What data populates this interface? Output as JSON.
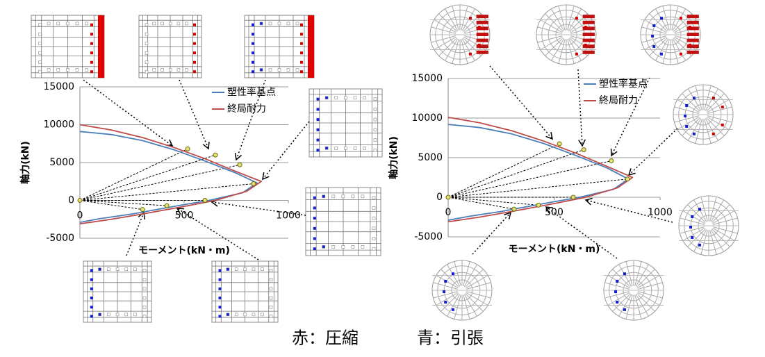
{
  "chart_data": [
    {
      "type": "line",
      "xlabel": "モーメント(kN・m)",
      "ylabel": "軸力(kN)",
      "xlim": [
        0,
        1000
      ],
      "ylim": [
        -5000,
        15000
      ],
      "xticks": [
        0,
        500,
        1000
      ],
      "yticks": [
        -5000,
        0,
        5000,
        10000,
        15000
      ],
      "grid": true,
      "legend": "upper right",
      "series": [
        {
          "name": "塑性率基点",
          "color": "#4a7ebb",
          "x": [
            0,
            150,
            300,
            450,
            600,
            750,
            850,
            780,
            620,
            450,
            250,
            100,
            0
          ],
          "values": [
            9100,
            8700,
            7900,
            6700,
            5200,
            3600,
            2300,
            1000,
            0,
            -800,
            -1800,
            -2400,
            -2900
          ]
        },
        {
          "name": "終局耐力",
          "color": "#be4b48",
          "x": [
            0,
            150,
            300,
            450,
            600,
            750,
            870,
            800,
            650,
            500,
            300,
            150,
            0
          ],
          "values": [
            10000,
            9300,
            8300,
            7000,
            5500,
            3800,
            2500,
            1200,
            0,
            -800,
            -1800,
            -2500,
            -3100
          ]
        }
      ],
      "markers": {
        "color": "#e8e070",
        "x": [
          0,
          517,
          650,
          767,
          833,
          600,
          417,
          300
        ],
        "y": [
          0,
          6800,
          6000,
          4700,
          2200,
          0,
          -700,
          -1200
        ]
      }
    },
    {
      "type": "line",
      "xlabel": "モーメント(kN・m)",
      "ylabel": "軸力(kN)",
      "xlim": [
        0,
        1000
      ],
      "ylim": [
        -5000,
        15000
      ],
      "xticks": [
        0,
        500,
        1000
      ],
      "yticks": [
        -5000,
        0,
        5000,
        10000,
        15000
      ],
      "grid": true,
      "legend": "upper right",
      "series": [
        {
          "name": "塑性率基点",
          "color": "#4a7ebb",
          "x": [
            0,
            150,
            300,
            450,
            600,
            750,
            850,
            780,
            620,
            450,
            250,
            100,
            0
          ],
          "values": [
            9200,
            8800,
            8000,
            6800,
            5300,
            3700,
            2300,
            1000,
            0,
            -800,
            -1800,
            -2400,
            -2900
          ]
        },
        {
          "name": "終局耐力",
          "color": "#be4b48",
          "x": [
            0,
            150,
            300,
            450,
            600,
            750,
            870,
            800,
            650,
            500,
            300,
            150,
            0
          ],
          "values": [
            10100,
            9400,
            8400,
            7100,
            5600,
            3900,
            2500,
            1200,
            0,
            -800,
            -1800,
            -2500,
            -3100
          ]
        }
      ],
      "markers": {
        "color": "#e8e070",
        "x": [
          0,
          525,
          640,
          770,
          846,
          590,
          426,
          311
        ],
        "y": [
          0,
          6750,
          6000,
          4600,
          2300,
          0,
          -1000,
          -1500
        ]
      }
    }
  ],
  "notes": [
    {
      "text": "赤：圧縮",
      "color": "#e02020"
    },
    {
      "text": "青：引張",
      "color": "#2e75b6"
    }
  ]
}
